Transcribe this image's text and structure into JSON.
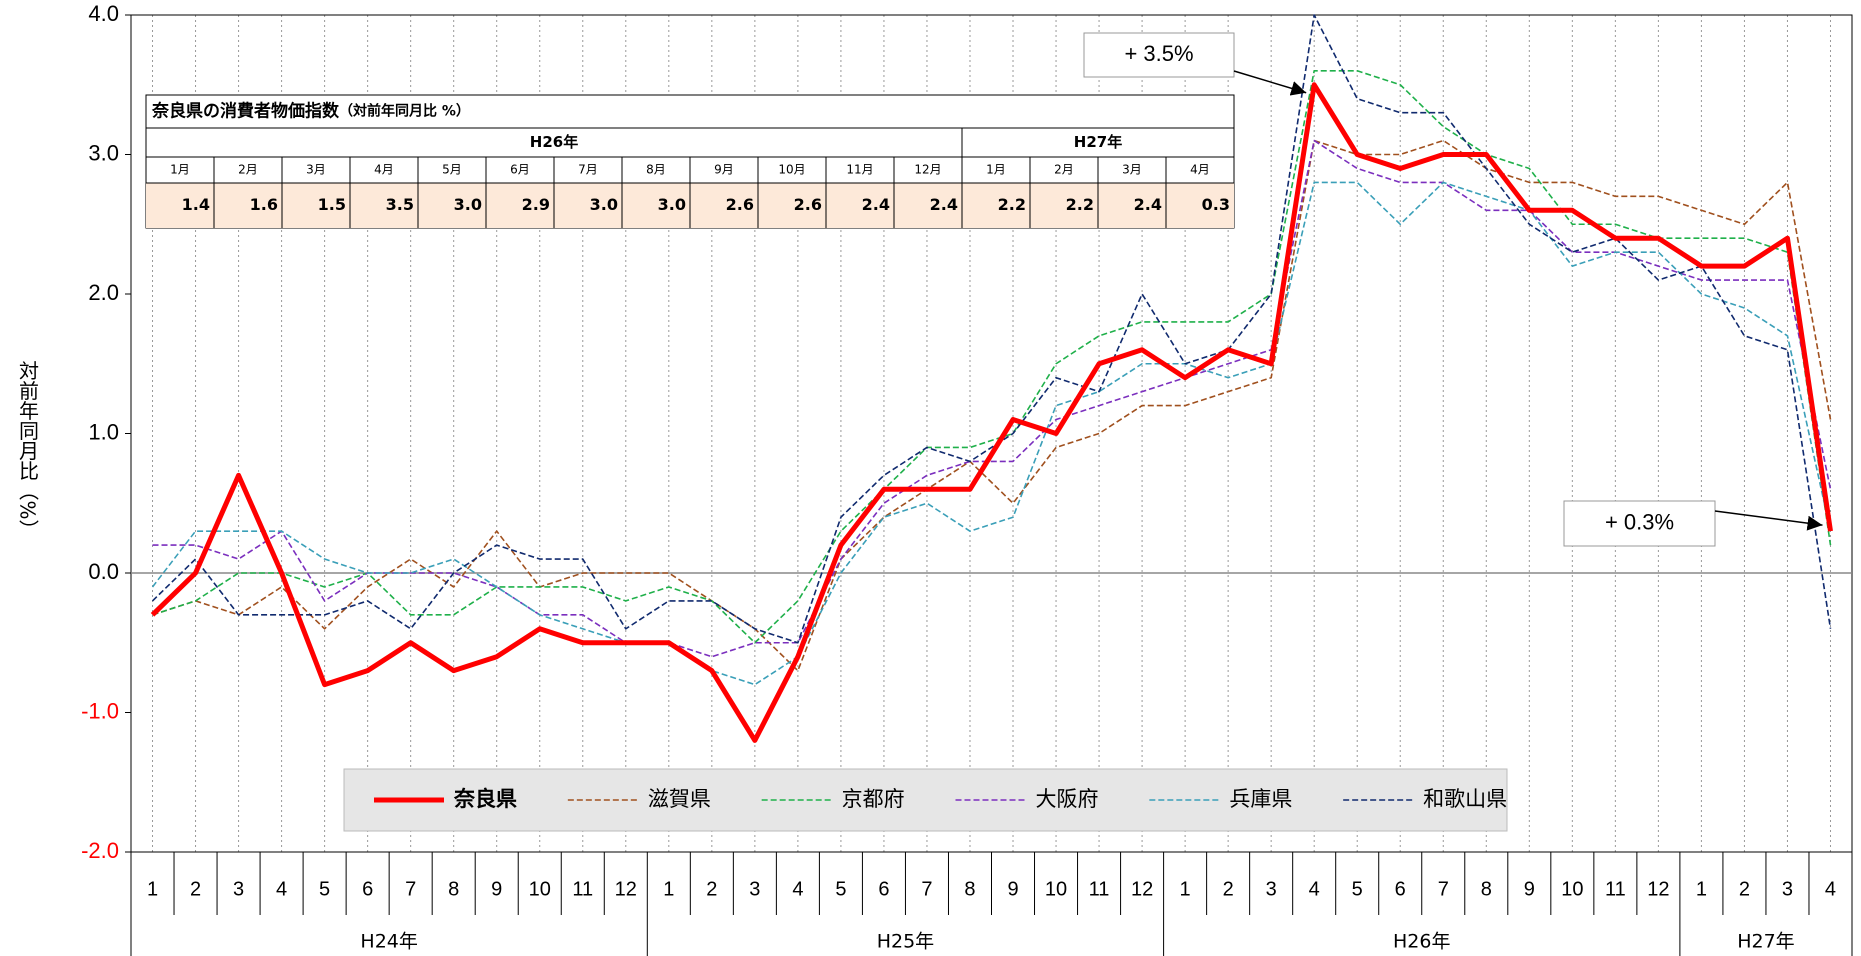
{
  "chart_data": {
    "type": "line",
    "y_label": "対前年同月比（%）",
    "categories": [
      "1",
      "2",
      "3",
      "4",
      "5",
      "6",
      "7",
      "8",
      "9",
      "10",
      "11",
      "12",
      "1",
      "2",
      "3",
      "4",
      "5",
      "6",
      "7",
      "8",
      "9",
      "10",
      "11",
      "12",
      "1",
      "2",
      "3",
      "4",
      "5",
      "6",
      "7",
      "8",
      "9",
      "10",
      "11",
      "12",
      "1",
      "2",
      "3",
      "4"
    ],
    "x_groups": [
      "H24年",
      "H25年",
      "H26年",
      "H27年"
    ],
    "ylim": [
      -2,
      4
    ],
    "yticks": [
      {
        "value": -2,
        "label": "-2.0"
      },
      {
        "value": -1,
        "label": "-1.0"
      },
      {
        "value": 0,
        "label": "0.0"
      },
      {
        "value": 1,
        "label": "1.0"
      },
      {
        "value": 2,
        "label": "2.0"
      },
      {
        "value": 3,
        "label": "3.0"
      },
      {
        "value": 4,
        "label": "4.0"
      }
    ],
    "negative_tick_color": "#ff0000",
    "series": [
      {
        "name": "奈良県",
        "color": "#ff0000",
        "line_style": "solid",
        "values": [
          -0.3,
          0.0,
          0.7,
          0.0,
          -0.8,
          -0.7,
          -0.5,
          -0.7,
          -0.6,
          -0.4,
          -0.5,
          -0.5,
          -0.5,
          -0.7,
          -1.2,
          -0.6,
          0.2,
          0.6,
          0.6,
          0.6,
          1.1,
          1.0,
          1.5,
          1.6,
          1.4,
          1.6,
          1.5,
          3.5,
          3.0,
          2.9,
          3.0,
          3.0,
          2.6,
          2.6,
          2.4,
          2.4,
          2.2,
          2.2,
          2.4,
          0.3
        ]
      },
      {
        "name": "滋賀県",
        "color": "#a0501e",
        "line_style": "dashed",
        "values": [
          -0.3,
          -0.2,
          -0.3,
          -0.1,
          -0.4,
          -0.1,
          0.1,
          -0.1,
          0.3,
          -0.1,
          0.0,
          0.0,
          0.0,
          -0.2,
          -0.4,
          -0.7,
          0.1,
          0.4,
          0.6,
          0.8,
          0.5,
          0.9,
          1.0,
          1.2,
          1.2,
          1.3,
          1.4,
          3.1,
          3.0,
          3.0,
          3.1,
          2.9,
          2.8,
          2.8,
          2.7,
          2.7,
          2.6,
          2.5,
          2.8,
          1.1
        ]
      },
      {
        "name": "京都府",
        "color": "#1fb04a",
        "line_style": "dashed",
        "values": [
          -0.3,
          -0.2,
          0.0,
          0.0,
          -0.1,
          0.0,
          -0.3,
          -0.3,
          -0.1,
          -0.1,
          -0.1,
          -0.2,
          -0.1,
          -0.2,
          -0.5,
          -0.2,
          0.3,
          0.6,
          0.9,
          0.9,
          1.0,
          1.5,
          1.7,
          1.8,
          1.8,
          1.8,
          2.0,
          3.6,
          3.6,
          3.5,
          3.2,
          3.0,
          2.9,
          2.5,
          2.5,
          2.4,
          2.4,
          2.4,
          2.3,
          0.2
        ]
      },
      {
        "name": "大阪府",
        "color": "#7b2fbe",
        "line_style": "dashed",
        "values": [
          0.2,
          0.2,
          0.1,
          0.3,
          -0.2,
          0.0,
          0.0,
          0.0,
          -0.1,
          -0.3,
          -0.3,
          -0.5,
          -0.5,
          -0.6,
          -0.5,
          -0.5,
          0.1,
          0.5,
          0.7,
          0.8,
          0.8,
          1.1,
          1.2,
          1.3,
          1.4,
          1.5,
          1.6,
          3.1,
          2.9,
          2.8,
          2.8,
          2.6,
          2.6,
          2.3,
          2.3,
          2.2,
          2.1,
          2.1,
          2.1,
          0.6
        ]
      },
      {
        "name": "兵庫県",
        "color": "#3a9fb8",
        "line_style": "dashed",
        "values": [
          -0.1,
          0.3,
          0.3,
          0.3,
          0.1,
          0.0,
          0.0,
          0.1,
          -0.1,
          -0.3,
          -0.4,
          -0.5,
          -0.5,
          -0.7,
          -0.8,
          -0.6,
          0.0,
          0.4,
          0.5,
          0.3,
          0.4,
          1.2,
          1.3,
          1.5,
          1.5,
          1.4,
          1.5,
          2.8,
          2.8,
          2.5,
          2.8,
          2.7,
          2.6,
          2.2,
          2.3,
          2.3,
          2.0,
          1.9,
          1.7,
          0.3
        ]
      },
      {
        "name": "和歌山県",
        "color": "#102a6e",
        "line_style": "dashed",
        "values": [
          -0.2,
          0.1,
          -0.3,
          -0.3,
          -0.3,
          -0.2,
          -0.4,
          0.0,
          0.2,
          0.1,
          0.1,
          -0.4,
          -0.2,
          -0.2,
          -0.4,
          -0.5,
          0.4,
          0.7,
          0.9,
          0.8,
          1.0,
          1.4,
          1.3,
          2.0,
          1.5,
          1.6,
          2.0,
          4.0,
          3.4,
          3.3,
          3.3,
          2.9,
          2.5,
          2.3,
          2.4,
          2.1,
          2.2,
          1.7,
          1.6,
          -0.4
        ]
      }
    ],
    "annotations": [
      {
        "text": "+ 3.5%"
      },
      {
        "text": "+ 0.3%"
      }
    ],
    "table": {
      "title": "奈良県の消費者物価指数",
      "subtitle": "（対前年同月比 %）",
      "groups": [
        "H26年",
        "H27年"
      ],
      "months": [
        "1月",
        "2月",
        "3月",
        "4月",
        "5月",
        "6月",
        "7月",
        "8月",
        "9月",
        "10月",
        "11月",
        "12月",
        "1月",
        "2月",
        "3月",
        "4月"
      ],
      "values": [
        "1.4",
        "1.6",
        "1.5",
        "3.5",
        "3.0",
        "2.9",
        "3.0",
        "3.0",
        "2.6",
        "2.6",
        "2.4",
        "2.4",
        "2.2",
        "2.2",
        "2.4",
        "0.3"
      ]
    }
  }
}
